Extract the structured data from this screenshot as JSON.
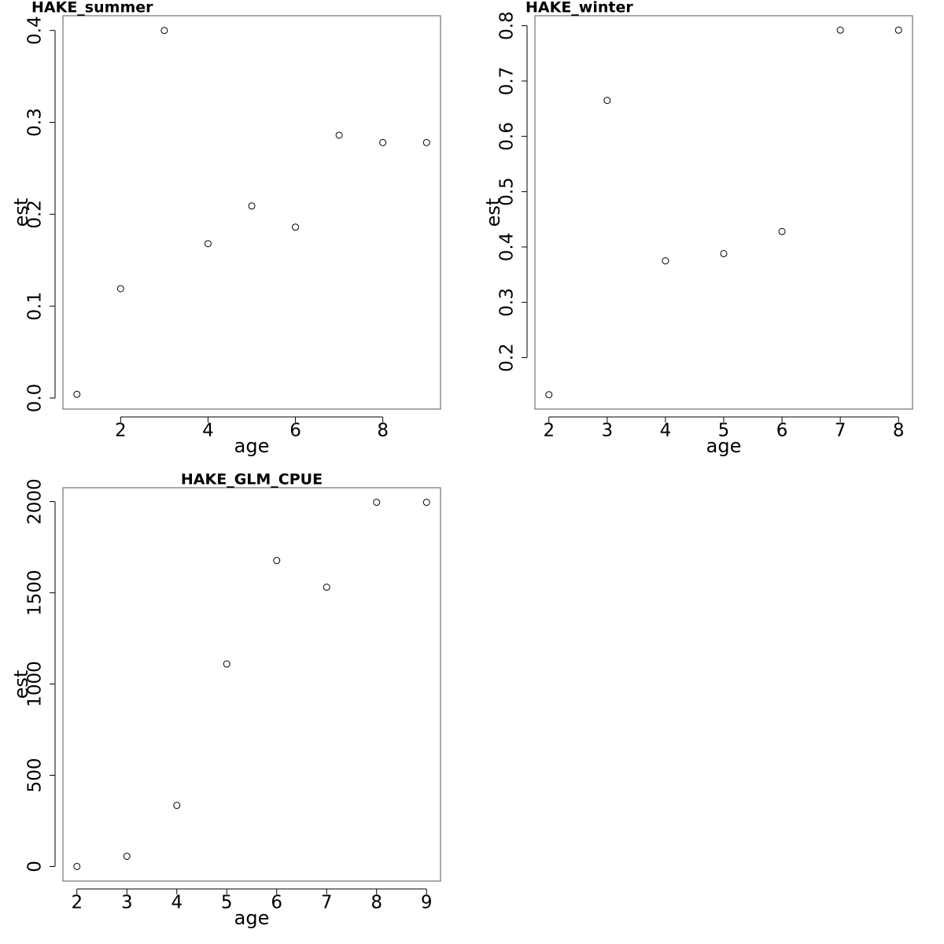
{
  "chart_data": [
    {
      "type": "scatter",
      "title": "HAKE_summer",
      "x_label": "age",
      "y_label": "est",
      "x": [
        1,
        2,
        3,
        4,
        5,
        6,
        7,
        8,
        9
      ],
      "values": [
        0.004,
        0.119,
        0.4,
        0.168,
        0.209,
        0.186,
        0.286,
        0.278,
        0.278
      ],
      "xlim": [
        0.68,
        9.32
      ],
      "xticks": [
        2,
        4,
        6,
        8
      ],
      "ylim": [
        -0.012,
        0.416
      ],
      "yticks": [
        {
          "value": 0,
          "label": "0.0"
        },
        0.1,
        0.2,
        0.3,
        0.4
      ]
    },
    {
      "type": "scatter",
      "title": "HAKE_winter",
      "x_label": "age",
      "y_label": "est",
      "x": [
        2,
        3,
        4,
        5,
        6,
        7,
        8
      ],
      "values": [
        0.133,
        0.665,
        0.375,
        0.388,
        0.428,
        0.792,
        0.792
      ],
      "xlim": [
        1.76,
        8.24
      ],
      "xticks": [
        2,
        3,
        4,
        5,
        6,
        7,
        8
      ],
      "ylim": [
        0.107,
        0.818
      ],
      "yticks": [
        0.2,
        0.3,
        0.4,
        0.5,
        0.6,
        0.7,
        0.8
      ]
    },
    {
      "type": "scatter",
      "title": "HAKE_GLM_CPUE",
      "x_label": "age",
      "y_label": "est",
      "x": [
        2,
        3,
        4,
        5,
        6,
        7,
        8,
        9
      ],
      "values": [
        0,
        56,
        335,
        1110,
        1677,
        1531,
        1996,
        1996
      ],
      "xlim": [
        1.72,
        9.28
      ],
      "xticks": [
        2,
        3,
        4,
        5,
        6,
        7,
        8,
        9
      ],
      "ylim": [
        -80,
        2076
      ],
      "yticks": [
        0,
        500,
        1000,
        1500,
        2000
      ]
    }
  ]
}
